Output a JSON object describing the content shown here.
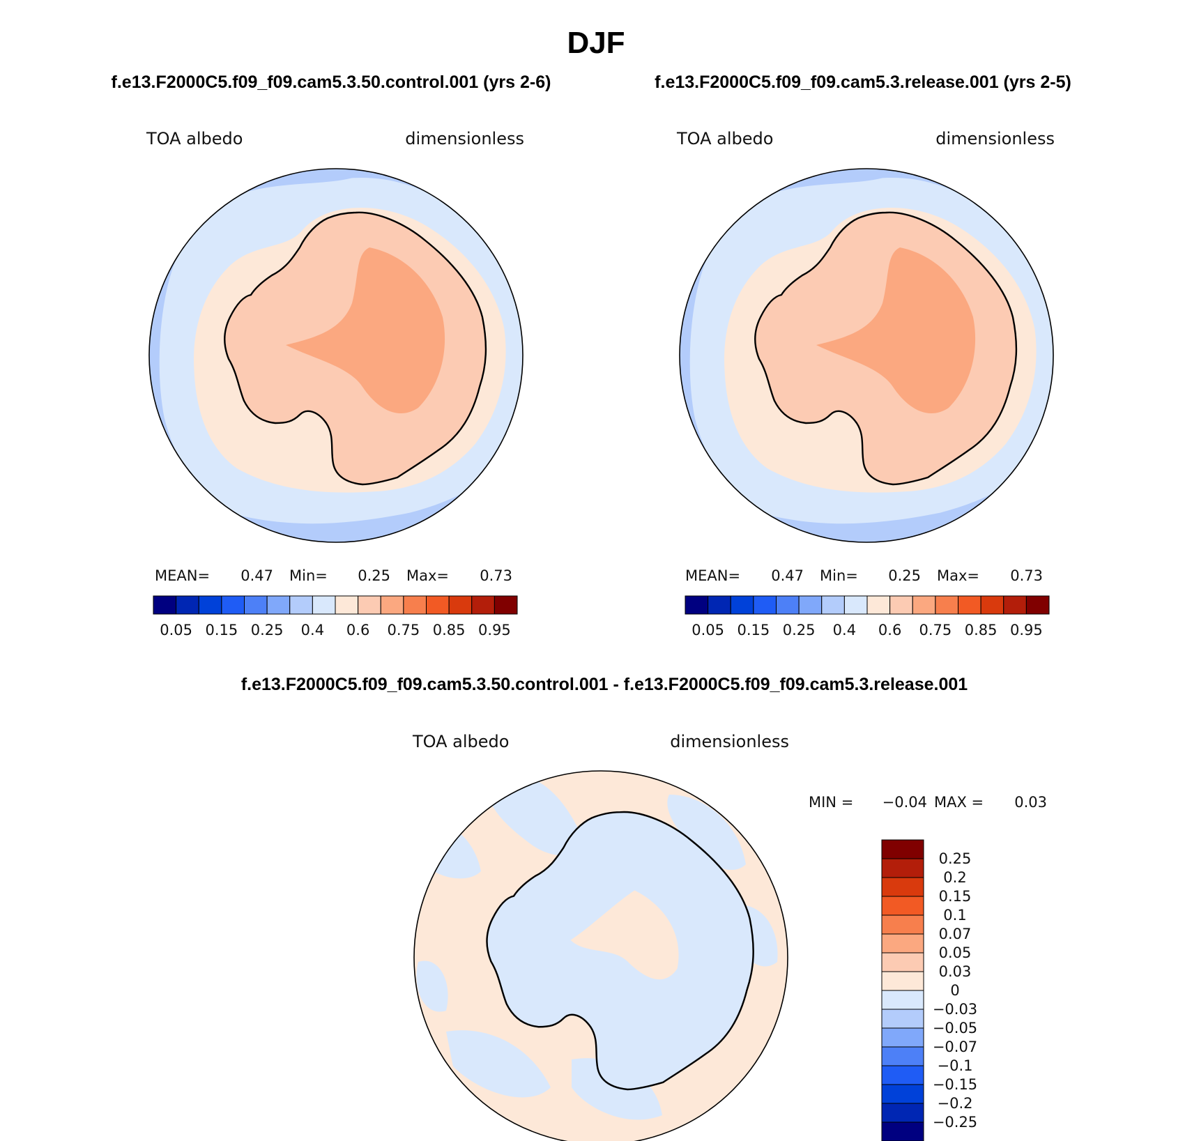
{
  "title": "DJF",
  "panels": [
    {
      "id": "left",
      "case_title": "f.e13.F2000C5.f09_f09.cam5.3.50.control.001 (yrs 2-6)",
      "variable_label": "TOA albedo",
      "units_label": "dimensionless",
      "stats": {
        "mean_label": "MEAN=",
        "mean": "0.47",
        "min_label": "Min=",
        "min": "0.25",
        "max_label": "Max=",
        "max": "0.73"
      }
    },
    {
      "id": "right",
      "case_title": "f.e13.F2000C5.f09_f09.cam5.3.release.001 (yrs 2-5)",
      "variable_label": "TOA albedo",
      "units_label": "dimensionless",
      "stats": {
        "mean_label": "MEAN=",
        "mean": "0.47",
        "min_label": "Min=",
        "min": "0.25",
        "max_label": "Max=",
        "max": "0.73"
      }
    }
  ],
  "diff_panel": {
    "case_title": "f.e13.F2000C5.f09_f09.cam5.3.50.control.001 - f.e13.F2000C5.f09_f09.cam5.3.release.001",
    "variable_label": "TOA albedo",
    "units_label": "dimensionless",
    "stats": {
      "min_label": "MIN =",
      "min": "−0.04",
      "max_label": "MAX =",
      "max": "0.03"
    }
  },
  "colorbar_abs": {
    "colors": [
      "#000080",
      "#0026b3",
      "#0041d9",
      "#1f5cf5",
      "#4d80f7",
      "#80a8fa",
      "#b3ccfb",
      "#d9e8fc",
      "#fde8d8",
      "#fccbb3",
      "#fba880",
      "#f77f4d",
      "#f25a24",
      "#d93a0d",
      "#b31e0a",
      "#800000"
    ],
    "tick_labels": [
      "0.05",
      "0.15",
      "0.25",
      "0.4",
      "0.6",
      "0.75",
      "0.85",
      "0.95"
    ]
  },
  "colorbar_diff": {
    "colors": [
      "#000080",
      "#0026b3",
      "#0041d9",
      "#1f5cf5",
      "#4d80f7",
      "#80a8fa",
      "#b3ccfb",
      "#d9e8fc",
      "#fde8d8",
      "#fccbb3",
      "#fba880",
      "#f77f4d",
      "#f25a24",
      "#d93a0d",
      "#b31e0a",
      "#800000"
    ],
    "tick_labels": [
      "−0.25",
      "−0.2",
      "−0.15",
      "−0.1",
      "−0.07",
      "−0.05",
      "−0.03",
      "0",
      "0.03",
      "0.05",
      "0.07",
      "0.1",
      "0.15",
      "0.2",
      "0.25"
    ]
  },
  "map_colors": {
    "ocean_abs": "#b3ccfb",
    "seaice_abs": "#d9e8fc",
    "coast_abs": "#fde8d8",
    "ice_abs": "#fccbb3",
    "plateau_abs": "#fba880",
    "low_abs": "#80a8fa",
    "diff_pos": "#fde8d8",
    "diff_neg": "#d9e8fc"
  }
}
